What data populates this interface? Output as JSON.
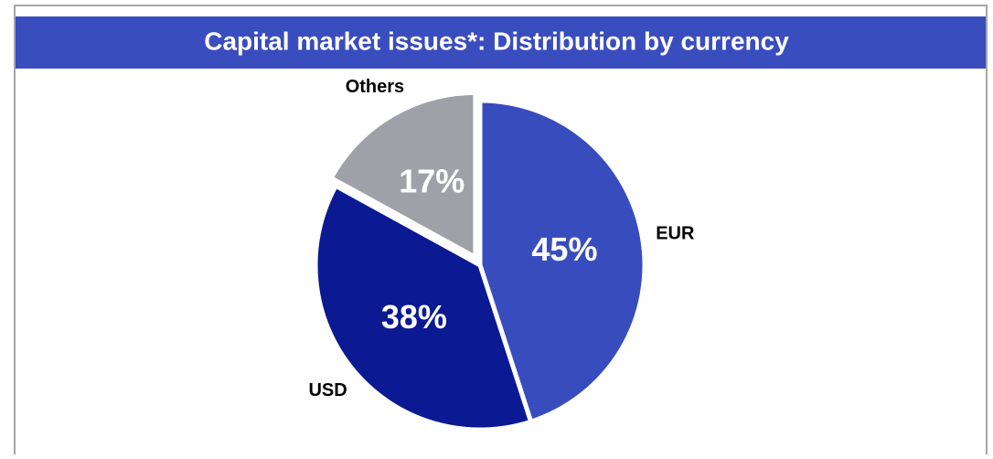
{
  "chart_data": {
    "type": "pie",
    "title": "Capital market issues*: Distribution by currency",
    "categories": [
      "EUR",
      "USD",
      "Others"
    ],
    "values": [
      45,
      38,
      17
    ],
    "value_labels": [
      "45%",
      "38%",
      "17%"
    ],
    "colors": [
      "#384dbd",
      "#0b1a93",
      "#a0a0a9"
    ]
  }
}
